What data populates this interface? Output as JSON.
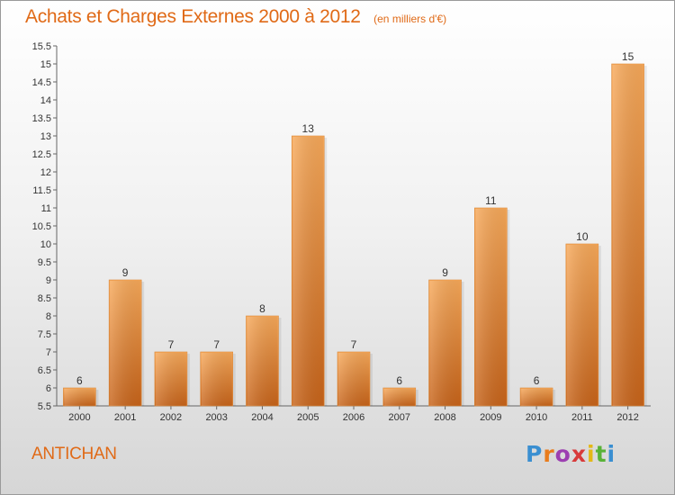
{
  "header": {
    "title": "Achats et Charges Externes 2000 à 2012",
    "subtitle": "(en milliers d'€)"
  },
  "footer": {
    "commune": "ANTICHAN",
    "logo_letters": [
      "P",
      "r",
      "o",
      "x",
      "i",
      "t",
      "i"
    ]
  },
  "colors": {
    "title": "#e06a17",
    "bar_light": "#f7a95a",
    "bar_dark": "#c8641a"
  },
  "chart_data": {
    "type": "bar",
    "title": "Achats et Charges Externes 2000 à 2012",
    "subtitle": "(en milliers d'€)",
    "xlabel": "",
    "ylabel": "",
    "categories": [
      "2000",
      "2001",
      "2002",
      "2003",
      "2004",
      "2005",
      "2006",
      "2007",
      "2008",
      "2009",
      "2010",
      "2011",
      "2012"
    ],
    "values": [
      6,
      9,
      7,
      7,
      8,
      13,
      7,
      6,
      9,
      11,
      6,
      10,
      15
    ],
    "ylim": [
      5.5,
      15.5
    ],
    "yticks": [
      "5.5",
      "6",
      "6.5",
      "7",
      "7.5",
      "8",
      "8.5",
      "9",
      "9.5",
      "10",
      "10.5",
      "11",
      "11.5",
      "12",
      "12.5",
      "13",
      "13.5",
      "14",
      "14.5",
      "15",
      "15.5"
    ],
    "grid": false,
    "legend": "none"
  }
}
